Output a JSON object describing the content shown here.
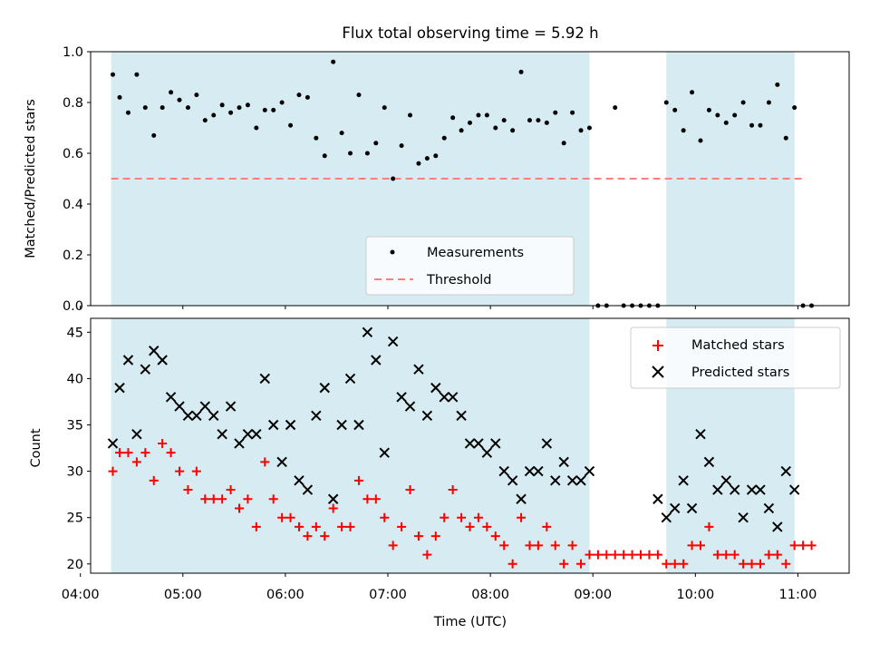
{
  "title": "Flux total observing time = 5.92 h",
  "colors": {
    "shade": "#add8e6",
    "measurements": "#000000",
    "threshold": "#ff7f7f",
    "matched": "#ff0000",
    "predicted": "#000000"
  },
  "chart_data": [
    {
      "type": "scatter",
      "ylabel": "Matched/Predicted stars",
      "ylim": [
        0,
        1.0
      ],
      "xlim": [
        "04:06",
        "11:30"
      ],
      "yticks": [
        "0.0",
        "0.2",
        "0.4",
        "0.6",
        "0.8",
        "1.0"
      ],
      "threshold": 0.5,
      "threshold_x": [
        "04:18",
        "11:05"
      ],
      "shaded_intervals": [
        [
          "04:18",
          "08:58"
        ],
        [
          "09:43",
          "10:58"
        ]
      ],
      "legend": {
        "position": "bottom-center",
        "entries": [
          "Measurements",
          "Threshold"
        ]
      },
      "series": [
        {
          "name": "Measurements",
          "x": [
            "04:19",
            "04:23",
            "04:28",
            "04:33",
            "04:38",
            "04:43",
            "04:48",
            "04:53",
            "04:58",
            "05:03",
            "05:08",
            "05:13",
            "05:18",
            "05:23",
            "05:28",
            "05:33",
            "05:38",
            "05:43",
            "05:48",
            "05:53",
            "05:58",
            "06:03",
            "06:08",
            "06:13",
            "06:18",
            "06:23",
            "06:28",
            "06:33",
            "06:38",
            "06:43",
            "06:48",
            "06:53",
            "06:58",
            "07:03",
            "07:08",
            "07:13",
            "07:18",
            "07:23",
            "07:28",
            "07:33",
            "07:38",
            "07:43",
            "07:48",
            "07:53",
            "07:58",
            "08:03",
            "08:08",
            "08:13",
            "08:18",
            "08:23",
            "08:28",
            "08:33",
            "08:38",
            "08:43",
            "08:48",
            "08:53",
            "08:58",
            "09:03",
            "09:08",
            "09:13",
            "09:18",
            "09:23",
            "09:28",
            "09:33",
            "09:38",
            "09:43",
            "09:48",
            "09:53",
            "09:58",
            "10:03",
            "10:08",
            "10:13",
            "10:18",
            "10:23",
            "10:28",
            "10:33",
            "10:38",
            "10:43",
            "10:48",
            "10:53",
            "10:58",
            "11:03",
            "11:08"
          ],
          "y": [
            0.91,
            0.82,
            0.76,
            0.91,
            0.78,
            0.67,
            0.78,
            0.84,
            0.81,
            0.78,
            0.83,
            0.73,
            0.75,
            0.79,
            0.76,
            0.78,
            0.79,
            0.7,
            0.77,
            0.77,
            0.8,
            0.71,
            0.83,
            0.82,
            0.66,
            0.59,
            0.96,
            0.68,
            0.6,
            0.83,
            0.6,
            0.64,
            0.78,
            0.5,
            0.63,
            0.75,
            0.56,
            0.58,
            0.59,
            0.66,
            0.74,
            0.69,
            0.72,
            0.75,
            0.75,
            0.7,
            0.73,
            0.69,
            0.92,
            0.73,
            0.73,
            0.72,
            0.76,
            0.64,
            0.76,
            0.69,
            0.7,
            0.0,
            0.0,
            0.78,
            0.0,
            0.0,
            0.0,
            0.0,
            0.0,
            0.8,
            0.77,
            0.69,
            0.84,
            0.65,
            0.77,
            0.75,
            0.72,
            0.75,
            0.8,
            0.71,
            0.71,
            0.8,
            0.87,
            0.66,
            0.78,
            0.0,
            0.0
          ]
        }
      ]
    },
    {
      "type": "scatter",
      "xlabel": "Time (UTC)",
      "ylabel": "Count",
      "ylim": [
        19,
        46.5
      ],
      "xlim": [
        "04:06",
        "11:30"
      ],
      "xticks": [
        "04:00",
        "05:00",
        "06:00",
        "07:00",
        "08:00",
        "09:00",
        "10:00",
        "11:00"
      ],
      "yticks": [
        "20",
        "25",
        "30",
        "35",
        "40",
        "45"
      ],
      "shaded_intervals": [
        [
          "04:18",
          "08:58"
        ],
        [
          "09:43",
          "10:58"
        ]
      ],
      "legend": {
        "position": "top-right",
        "entries": [
          "Matched stars",
          "Predicted stars"
        ]
      },
      "series": [
        {
          "name": "Matched stars",
          "x": [
            "04:19",
            "04:23",
            "04:28",
            "04:33",
            "04:38",
            "04:43",
            "04:48",
            "04:53",
            "04:58",
            "05:03",
            "05:08",
            "05:13",
            "05:18",
            "05:23",
            "05:28",
            "05:33",
            "05:38",
            "05:43",
            "05:48",
            "05:53",
            "05:58",
            "06:03",
            "06:08",
            "06:13",
            "06:18",
            "06:23",
            "06:28",
            "06:33",
            "06:38",
            "06:43",
            "06:48",
            "06:53",
            "06:58",
            "07:03",
            "07:08",
            "07:13",
            "07:18",
            "07:23",
            "07:28",
            "07:33",
            "07:38",
            "07:43",
            "07:48",
            "07:53",
            "07:58",
            "08:03",
            "08:08",
            "08:13",
            "08:18",
            "08:23",
            "08:28",
            "08:33",
            "08:38",
            "08:43",
            "08:48",
            "08:53",
            "08:58",
            "09:03",
            "09:08",
            "09:13",
            "09:18",
            "09:23",
            "09:28",
            "09:33",
            "09:38",
            "09:43",
            "09:48",
            "09:53",
            "09:58",
            "10:03",
            "10:08",
            "10:13",
            "10:18",
            "10:23",
            "10:28",
            "10:33",
            "10:38",
            "10:43",
            "10:48",
            "10:53",
            "10:58",
            "11:03",
            "11:08"
          ],
          "y": [
            30,
            32,
            32,
            31,
            32,
            29,
            33,
            32,
            30,
            28,
            30,
            27,
            27,
            27,
            28,
            26,
            27,
            24,
            31,
            27,
            25,
            25,
            24,
            23,
            24,
            23,
            26,
            24,
            24,
            29,
            27,
            27,
            25,
            22,
            24,
            28,
            23,
            21,
            23,
            25,
            28,
            25,
            24,
            25,
            24,
            23,
            22,
            20,
            25,
            22,
            22,
            24,
            22,
            20,
            22,
            20,
            21,
            21,
            21,
            21,
            21,
            21,
            21,
            21,
            21,
            20,
            20,
            20,
            22,
            22,
            24,
            21,
            21,
            21,
            20,
            20,
            20,
            21,
            21,
            20,
            22,
            22,
            22
          ]
        },
        {
          "name": "Predicted stars",
          "x": [
            "04:19",
            "04:23",
            "04:28",
            "04:33",
            "04:38",
            "04:43",
            "04:48",
            "04:53",
            "04:58",
            "05:03",
            "05:08",
            "05:13",
            "05:18",
            "05:23",
            "05:28",
            "05:33",
            "05:38",
            "05:43",
            "05:48",
            "05:53",
            "05:58",
            "06:03",
            "06:08",
            "06:13",
            "06:18",
            "06:23",
            "06:28",
            "06:33",
            "06:38",
            "06:43",
            "06:48",
            "06:53",
            "06:58",
            "07:03",
            "07:08",
            "07:13",
            "07:18",
            "07:23",
            "07:28",
            "07:33",
            "07:38",
            "07:43",
            "07:48",
            "07:53",
            "07:58",
            "08:03",
            "08:08",
            "08:13",
            "08:18",
            "08:23",
            "08:28",
            "08:33",
            "08:38",
            "08:43",
            "08:48",
            "08:53",
            "08:58",
            "09:38",
            "09:43",
            "09:48",
            "09:53",
            "09:58",
            "10:03",
            "10:08",
            "10:13",
            "10:18",
            "10:23",
            "10:28",
            "10:33",
            "10:38",
            "10:43",
            "10:48",
            "10:53",
            "10:58"
          ],
          "y": [
            33,
            39,
            42,
            34,
            41,
            43,
            42,
            38,
            37,
            36,
            36,
            37,
            36,
            34,
            37,
            33,
            34,
            34,
            40,
            35,
            31,
            35,
            29,
            28,
            36,
            39,
            27,
            35,
            40,
            35,
            45,
            42,
            32,
            44,
            38,
            37,
            41,
            36,
            39,
            38,
            38,
            36,
            33,
            33,
            32,
            33,
            30,
            29,
            27,
            30,
            30,
            33,
            29,
            31,
            29,
            29,
            30,
            27,
            25,
            26,
            29,
            26,
            34,
            31,
            28,
            29,
            28,
            25,
            28,
            28,
            26,
            24,
            30,
            28
          ]
        }
      ]
    }
  ]
}
